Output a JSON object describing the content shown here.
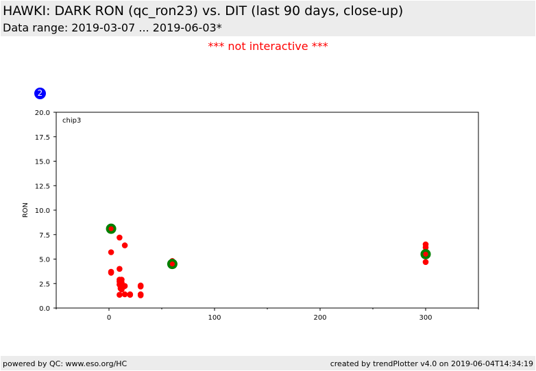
{
  "header": {
    "title": "HAWKI: DARK RON (qc_ron23) vs. DIT (last 90 days, close-up)",
    "subtitle": "Data range: 2019-03-07 ... 2019-06-03*"
  },
  "notice": {
    "text": "*** not interactive ***",
    "color": "#ff0000"
  },
  "badge": {
    "text": "2",
    "color": "#0000ff"
  },
  "footer": {
    "left": "powered by QC: www.eso.org/HC",
    "right": "created by trendPlotter v4.0 on 2019-06-04T14:34:19"
  },
  "chart_data": {
    "type": "scatter",
    "panel_label": "chip3",
    "ylabel": "RON",
    "xlabel": "",
    "xlim": [
      -50,
      350
    ],
    "ylim": [
      0,
      20
    ],
    "xticks": [
      0,
      100,
      200,
      300
    ],
    "yticks": [
      0.0,
      2.5,
      5.0,
      7.5,
      10.0,
      12.5,
      15.0,
      17.5,
      20.0
    ],
    "xticks_minor": [
      -50,
      50,
      150,
      250,
      350
    ],
    "grid": false,
    "series": [
      {
        "color": "#ff0000",
        "points": [
          [
            2,
            8.2
          ],
          [
            4,
            8.1
          ],
          [
            2,
            5.7
          ],
          [
            2,
            3.7
          ],
          [
            2,
            3.6
          ],
          [
            10,
            7.2
          ],
          [
            15,
            6.4
          ],
          [
            10,
            4.0
          ],
          [
            10,
            2.9
          ],
          [
            12,
            2.9
          ],
          [
            10,
            2.7
          ],
          [
            12,
            2.6
          ],
          [
            10,
            2.4
          ],
          [
            11,
            2.2
          ],
          [
            15,
            2.25
          ],
          [
            14,
            2.2
          ],
          [
            11,
            2.0
          ],
          [
            12,
            1.9
          ],
          [
            10,
            1.35
          ],
          [
            15,
            1.4
          ],
          [
            20,
            1.4
          ],
          [
            20,
            1.35
          ],
          [
            30,
            2.3
          ],
          [
            30,
            2.2
          ],
          [
            30,
            1.4
          ],
          [
            30,
            1.3
          ],
          [
            60,
            4.8
          ],
          [
            60,
            4.6
          ],
          [
            60,
            4.4
          ],
          [
            300,
            6.5
          ],
          [
            300,
            6.2
          ],
          [
            300,
            5.8
          ],
          [
            300,
            5.5
          ],
          [
            300,
            4.7
          ]
        ]
      },
      {
        "color": "#008000",
        "role": "median",
        "points": [
          [
            2,
            8.1
          ],
          [
            60,
            4.5
          ],
          [
            300,
            5.5
          ]
        ]
      }
    ]
  }
}
